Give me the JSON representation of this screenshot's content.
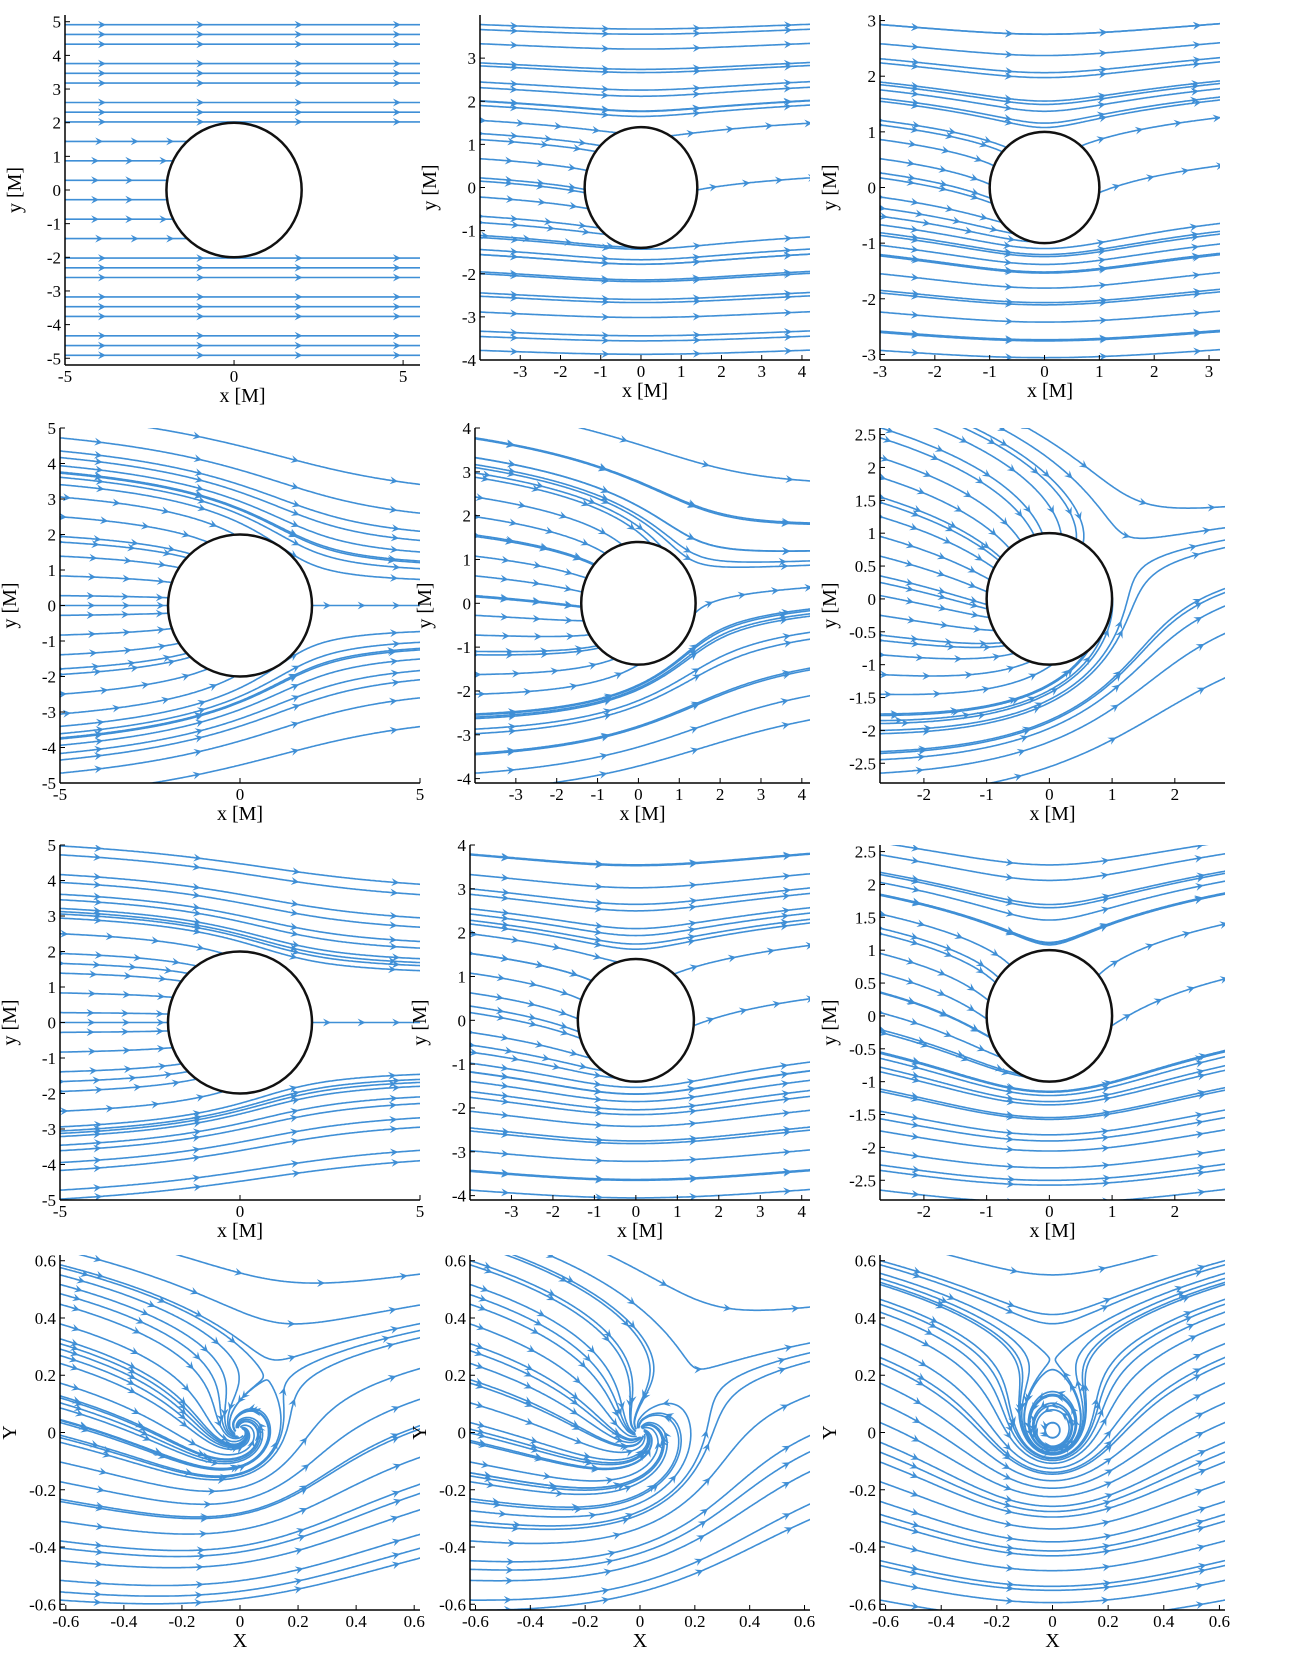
{
  "colors": {
    "streamline": "#3f8fd6",
    "axis": "#000000",
    "obstacle": "#111111",
    "background": "#ffffff"
  },
  "chart_data": [
    {
      "type": "streamline",
      "panel": "row1-col1",
      "xlabel": "x [M]",
      "ylabel": "y [M]",
      "xlim": [
        -5,
        5.5
      ],
      "ylim": [
        -5.2,
        5.2
      ],
      "xticks": [
        {
          "v": -5,
          "t": "-5"
        },
        {
          "v": 0,
          "t": "0"
        },
        {
          "v": 5,
          "t": "5"
        }
      ],
      "yticks": [
        {
          "v": 5,
          "t": "5"
        },
        {
          "v": 4,
          "t": "4"
        },
        {
          "v": 3,
          "t": "3"
        },
        {
          "v": 2,
          "t": "2"
        },
        {
          "v": 1,
          "t": "1"
        },
        {
          "v": 0,
          "t": "0"
        },
        {
          "v": -1,
          "t": "-1"
        },
        {
          "v": -2,
          "t": "-2"
        },
        {
          "v": -3,
          "t": "-3"
        },
        {
          "v": -4,
          "t": "-4"
        },
        {
          "v": -5,
          "t": "-5"
        }
      ],
      "obstacle_radius": 2,
      "flow": {
        "uniform": 1.0,
        "source": 0,
        "vortex": 0,
        "core": 0
      }
    },
    {
      "type": "streamline",
      "panel": "row1-col2",
      "xlabel": "x [M]",
      "ylabel": "y [M]",
      "xlim": [
        -4,
        4.2
      ],
      "ylim": [
        -4,
        4
      ],
      "xticks": [
        {
          "v": -3,
          "t": "-3"
        },
        {
          "v": -2,
          "t": "-2"
        },
        {
          "v": -1,
          "t": "-1"
        },
        {
          "v": 0,
          "t": "0"
        },
        {
          "v": 1,
          "t": "1"
        },
        {
          "v": 2,
          "t": "2"
        },
        {
          "v": 3,
          "t": "3"
        },
        {
          "v": 4,
          "t": "4"
        }
      ],
      "yticks": [
        {
          "v": 3,
          "t": "3"
        },
        {
          "v": 2,
          "t": "2"
        },
        {
          "v": 1,
          "t": "1"
        },
        {
          "v": 0,
          "t": "0"
        },
        {
          "v": -1,
          "t": "-1"
        },
        {
          "v": -2,
          "t": "-2"
        },
        {
          "v": -3,
          "t": "-3"
        },
        {
          "v": -4,
          "t": "-4"
        }
      ],
      "obstacle_radius": 1.4,
      "flow": {
        "uniform": 1.0,
        "source": 0,
        "vortex": 1.6,
        "core": 1.4
      }
    },
    {
      "type": "streamline",
      "panel": "row1-col3",
      "xlabel": "x [M]",
      "ylabel": "y [M]",
      "xlim": [
        -3,
        3.2
      ],
      "ylim": [
        -3.1,
        3.1
      ],
      "xticks": [
        {
          "v": -3,
          "t": "-3"
        },
        {
          "v": -2,
          "t": "-2"
        },
        {
          "v": -1,
          "t": "-1"
        },
        {
          "v": 0,
          "t": "0"
        },
        {
          "v": 1,
          "t": "1"
        },
        {
          "v": 2,
          "t": "2"
        },
        {
          "v": 3,
          "t": "3"
        }
      ],
      "yticks": [
        {
          "v": 3,
          "t": "3"
        },
        {
          "v": 2,
          "t": "2"
        },
        {
          "v": 1,
          "t": "1"
        },
        {
          "v": 0,
          "t": "0"
        },
        {
          "v": -1,
          "t": "-1"
        },
        {
          "v": -2,
          "t": "-2"
        },
        {
          "v": -3,
          "t": "-3"
        }
      ],
      "obstacle_radius": 1,
      "flow": {
        "uniform": 1.0,
        "source": 0,
        "vortex": 2.6,
        "core": 1.0
      }
    },
    {
      "type": "streamline",
      "panel": "row2-col1",
      "xlabel": "x [M]",
      "ylabel": "y [M]",
      "xlim": [
        -5,
        5
      ],
      "ylim": [
        -5,
        5
      ],
      "xticks": [
        {
          "v": -5,
          "t": "-5"
        },
        {
          "v": 0,
          "t": "0"
        },
        {
          "v": 5,
          "t": "5"
        }
      ],
      "yticks": [
        {
          "v": 5,
          "t": "5"
        },
        {
          "v": 4,
          "t": "4"
        },
        {
          "v": 3,
          "t": "3"
        },
        {
          "v": 2,
          "t": "2"
        },
        {
          "v": 1,
          "t": "1"
        },
        {
          "v": 0,
          "t": "0"
        },
        {
          "v": -1,
          "t": "-1"
        },
        {
          "v": -2,
          "t": "-2"
        },
        {
          "v": -3,
          "t": "-3"
        },
        {
          "v": -4,
          "t": "-4"
        },
        {
          "v": -5,
          "t": "-5"
        }
      ],
      "obstacle_radius": 2,
      "flow": {
        "uniform": 1.0,
        "source": -7,
        "vortex": 0,
        "core": 2.0
      }
    },
    {
      "type": "streamline",
      "panel": "row2-col2",
      "xlabel": "x [M]",
      "ylabel": "y [M]",
      "xlim": [
        -4,
        4.2
      ],
      "ylim": [
        -4.1,
        4
      ],
      "xticks": [
        {
          "v": -3,
          "t": "-3"
        },
        {
          "v": -2,
          "t": "-2"
        },
        {
          "v": -1,
          "t": "-1"
        },
        {
          "v": 0,
          "t": "0"
        },
        {
          "v": 1,
          "t": "1"
        },
        {
          "v": 2,
          "t": "2"
        },
        {
          "v": 3,
          "t": "3"
        },
        {
          "v": 4,
          "t": "4"
        }
      ],
      "yticks": [
        {
          "v": 4,
          "t": "4"
        },
        {
          "v": 3,
          "t": "3"
        },
        {
          "v": 2,
          "t": "2"
        },
        {
          "v": 1,
          "t": "1"
        },
        {
          "v": 0,
          "t": "0"
        },
        {
          "v": -1,
          "t": "-1"
        },
        {
          "v": -2,
          "t": "-2"
        },
        {
          "v": -3,
          "t": "-3"
        },
        {
          "v": -4,
          "t": "-4"
        }
      ],
      "obstacle_radius": 1.4,
      "flow": {
        "uniform": 1.0,
        "source": -6,
        "vortex": 2.0,
        "core": 1.4
      }
    },
    {
      "type": "streamline",
      "panel": "row2-col3",
      "xlabel": "x [M]",
      "ylabel": "y [M]",
      "xlim": [
        -2.7,
        2.8
      ],
      "ylim": [
        -2.8,
        2.6
      ],
      "xticks": [
        {
          "v": -2,
          "t": "-2"
        },
        {
          "v": -1,
          "t": "-1"
        },
        {
          "v": 0,
          "t": "0"
        },
        {
          "v": 1,
          "t": "1"
        },
        {
          "v": 2,
          "t": "2"
        }
      ],
      "yticks": [
        {
          "v": 2.5,
          "t": "2.5"
        },
        {
          "v": 2,
          "t": "2"
        },
        {
          "v": 1.5,
          "t": "1.5"
        },
        {
          "v": 1,
          "t": "1"
        },
        {
          "v": 0.5,
          "t": "0.5"
        },
        {
          "v": 0,
          "t": "0"
        },
        {
          "v": -0.5,
          "t": "-0.5"
        },
        {
          "v": -1,
          "t": "-1"
        },
        {
          "v": -1.5,
          "t": "-1.5"
        },
        {
          "v": -2,
          "t": "-2"
        },
        {
          "v": -2.5,
          "t": "-2.5"
        }
      ],
      "obstacle_radius": 1,
      "flow": {
        "uniform": 0.6,
        "source": -4,
        "vortex": 2.5,
        "core": 1.0
      }
    },
    {
      "type": "streamline",
      "panel": "row3-col1",
      "xlabel": "x [M]",
      "ylabel": "y [M]",
      "xlim": [
        -5,
        5
      ],
      "ylim": [
        -5,
        5
      ],
      "xticks": [
        {
          "v": -5,
          "t": "-5"
        },
        {
          "v": 0,
          "t": "0"
        },
        {
          "v": 5,
          "t": "5"
        }
      ],
      "yticks": [
        {
          "v": 5,
          "t": "5"
        },
        {
          "v": 4,
          "t": "4"
        },
        {
          "v": 3,
          "t": "3"
        },
        {
          "v": 2,
          "t": "2"
        },
        {
          "v": 1,
          "t": "1"
        },
        {
          "v": 0,
          "t": "0"
        },
        {
          "v": -1,
          "t": "-1"
        },
        {
          "v": -2,
          "t": "-2"
        },
        {
          "v": -3,
          "t": "-3"
        },
        {
          "v": -4,
          "t": "-4"
        },
        {
          "v": -5,
          "t": "-5"
        }
      ],
      "obstacle_radius": 2,
      "flow": {
        "uniform": 1.0,
        "source": -4,
        "vortex": 0,
        "core": 2.0
      }
    },
    {
      "type": "streamline",
      "panel": "row3-col2",
      "xlabel": "x [M]",
      "ylabel": "y [M]",
      "xlim": [
        -4,
        4.2
      ],
      "ylim": [
        -4.1,
        4
      ],
      "xticks": [
        {
          "v": -3,
          "t": "-3"
        },
        {
          "v": -2,
          "t": "-2"
        },
        {
          "v": -1,
          "t": "-1"
        },
        {
          "v": 0,
          "t": "0"
        },
        {
          "v": 1,
          "t": "1"
        },
        {
          "v": 2,
          "t": "2"
        },
        {
          "v": 3,
          "t": "3"
        },
        {
          "v": 4,
          "t": "4"
        }
      ],
      "yticks": [
        {
          "v": 4,
          "t": "4"
        },
        {
          "v": 3,
          "t": "3"
        },
        {
          "v": 2,
          "t": "2"
        },
        {
          "v": 1,
          "t": "1"
        },
        {
          "v": 0,
          "t": "0"
        },
        {
          "v": -1,
          "t": "-1"
        },
        {
          "v": -2,
          "t": "-2"
        },
        {
          "v": -3,
          "t": "-3"
        },
        {
          "v": -4,
          "t": "-4"
        }
      ],
      "obstacle_radius": 1.4,
      "flow": {
        "uniform": 1.0,
        "source": 0,
        "vortex": 3.5,
        "core": 1.4
      }
    },
    {
      "type": "streamline",
      "panel": "row3-col3",
      "xlabel": "x [M]",
      "ylabel": "y [M]",
      "xlim": [
        -2.7,
        2.8
      ],
      "ylim": [
        -2.8,
        2.6
      ],
      "xticks": [
        {
          "v": -2,
          "t": "-2"
        },
        {
          "v": -1,
          "t": "-1"
        },
        {
          "v": 0,
          "t": "0"
        },
        {
          "v": 1,
          "t": "1"
        },
        {
          "v": 2,
          "t": "2"
        }
      ],
      "yticks": [
        {
          "v": 2.5,
          "t": "2.5"
        },
        {
          "v": 2,
          "t": "2"
        },
        {
          "v": 1.5,
          "t": "1.5"
        },
        {
          "v": 1,
          "t": "1"
        },
        {
          "v": 0.5,
          "t": "0.5"
        },
        {
          "v": 0,
          "t": "0"
        },
        {
          "v": -0.5,
          "t": "-0.5"
        },
        {
          "v": -1,
          "t": "-1"
        },
        {
          "v": -1.5,
          "t": "-1.5"
        },
        {
          "v": -2,
          "t": "-2"
        },
        {
          "v": -2.5,
          "t": "-2.5"
        }
      ],
      "obstacle_radius": 1,
      "flow": {
        "uniform": 0.7,
        "source": 0,
        "vortex": 3.0,
        "core": 1.0
      }
    },
    {
      "type": "streamline",
      "panel": "row4-col1",
      "xlabel": "X",
      "ylabel": "Y",
      "xlim": [
        -0.62,
        0.62
      ],
      "ylim": [
        -0.62,
        0.62
      ],
      "xticks": [
        {
          "v": -0.6,
          "t": "-0.6"
        },
        {
          "v": -0.4,
          "t": "-0.4"
        },
        {
          "v": -0.2,
          "t": "-0.2"
        },
        {
          "v": 0,
          "t": "0"
        },
        {
          "v": 0.2,
          "t": "0.2"
        },
        {
          "v": 0.4,
          "t": "0.4"
        },
        {
          "v": 0.6,
          "t": "0.6"
        }
      ],
      "yticks": [
        {
          "v": 0.6,
          "t": "0.6"
        },
        {
          "v": 0.4,
          "t": "0.4"
        },
        {
          "v": 0.2,
          "t": "0.2"
        },
        {
          "v": 0,
          "t": "0"
        },
        {
          "v": -0.2,
          "t": "-0.2"
        },
        {
          "v": -0.4,
          "t": "-0.4"
        },
        {
          "v": -0.6,
          "t": "-0.6"
        }
      ],
      "obstacle_radius": 0,
      "flow": {
        "uniform": 1.0,
        "source": -0.6,
        "vortex": 1.2,
        "core": 0.05
      }
    },
    {
      "type": "streamline",
      "panel": "row4-col2",
      "xlabel": "X",
      "ylabel": "Y",
      "xlim": [
        -0.62,
        0.62
      ],
      "ylim": [
        -0.62,
        0.62
      ],
      "xticks": [
        {
          "v": -0.6,
          "t": "-0.6"
        },
        {
          "v": -0.4,
          "t": "-0.4"
        },
        {
          "v": -0.2,
          "t": "-0.2"
        },
        {
          "v": 0,
          "t": "0"
        },
        {
          "v": 0.2,
          "t": "0.2"
        },
        {
          "v": 0.4,
          "t": "0.4"
        },
        {
          "v": 0.6,
          "t": "0.6"
        }
      ],
      "yticks": [
        {
          "v": 0.6,
          "t": "0.6"
        },
        {
          "v": 0.4,
          "t": "0.4"
        },
        {
          "v": 0.2,
          "t": "0.2"
        },
        {
          "v": 0,
          "t": "0"
        },
        {
          "v": -0.2,
          "t": "-0.2"
        },
        {
          "v": -0.4,
          "t": "-0.4"
        },
        {
          "v": -0.6,
          "t": "-0.6"
        }
      ],
      "obstacle_radius": 0,
      "flow": {
        "uniform": 1.0,
        "source": -1.2,
        "vortex": 1.2,
        "core": 0.05
      }
    },
    {
      "type": "streamline",
      "panel": "row4-col3",
      "xlabel": "X",
      "ylabel": "Y",
      "xlim": [
        -0.62,
        0.62
      ],
      "ylim": [
        -0.62,
        0.62
      ],
      "xticks": [
        {
          "v": -0.6,
          "t": "-0.6"
        },
        {
          "v": -0.4,
          "t": "-0.4"
        },
        {
          "v": -0.2,
          "t": "-0.2"
        },
        {
          "v": 0,
          "t": "0"
        },
        {
          "v": 0.2,
          "t": "0.2"
        },
        {
          "v": 0.4,
          "t": "0.4"
        },
        {
          "v": 0.6,
          "t": "0.6"
        }
      ],
      "yticks": [
        {
          "v": 0.6,
          "t": "0.6"
        },
        {
          "v": 0.4,
          "t": "0.4"
        },
        {
          "v": 0.2,
          "t": "0.2"
        },
        {
          "v": 0,
          "t": "0"
        },
        {
          "v": -0.2,
          "t": "-0.2"
        },
        {
          "v": -0.4,
          "t": "-0.4"
        },
        {
          "v": -0.6,
          "t": "-0.6"
        }
      ],
      "obstacle_radius": 0,
      "flow": {
        "uniform": 1.0,
        "source": 0,
        "vortex": 1.6,
        "core": 0.05
      }
    }
  ]
}
